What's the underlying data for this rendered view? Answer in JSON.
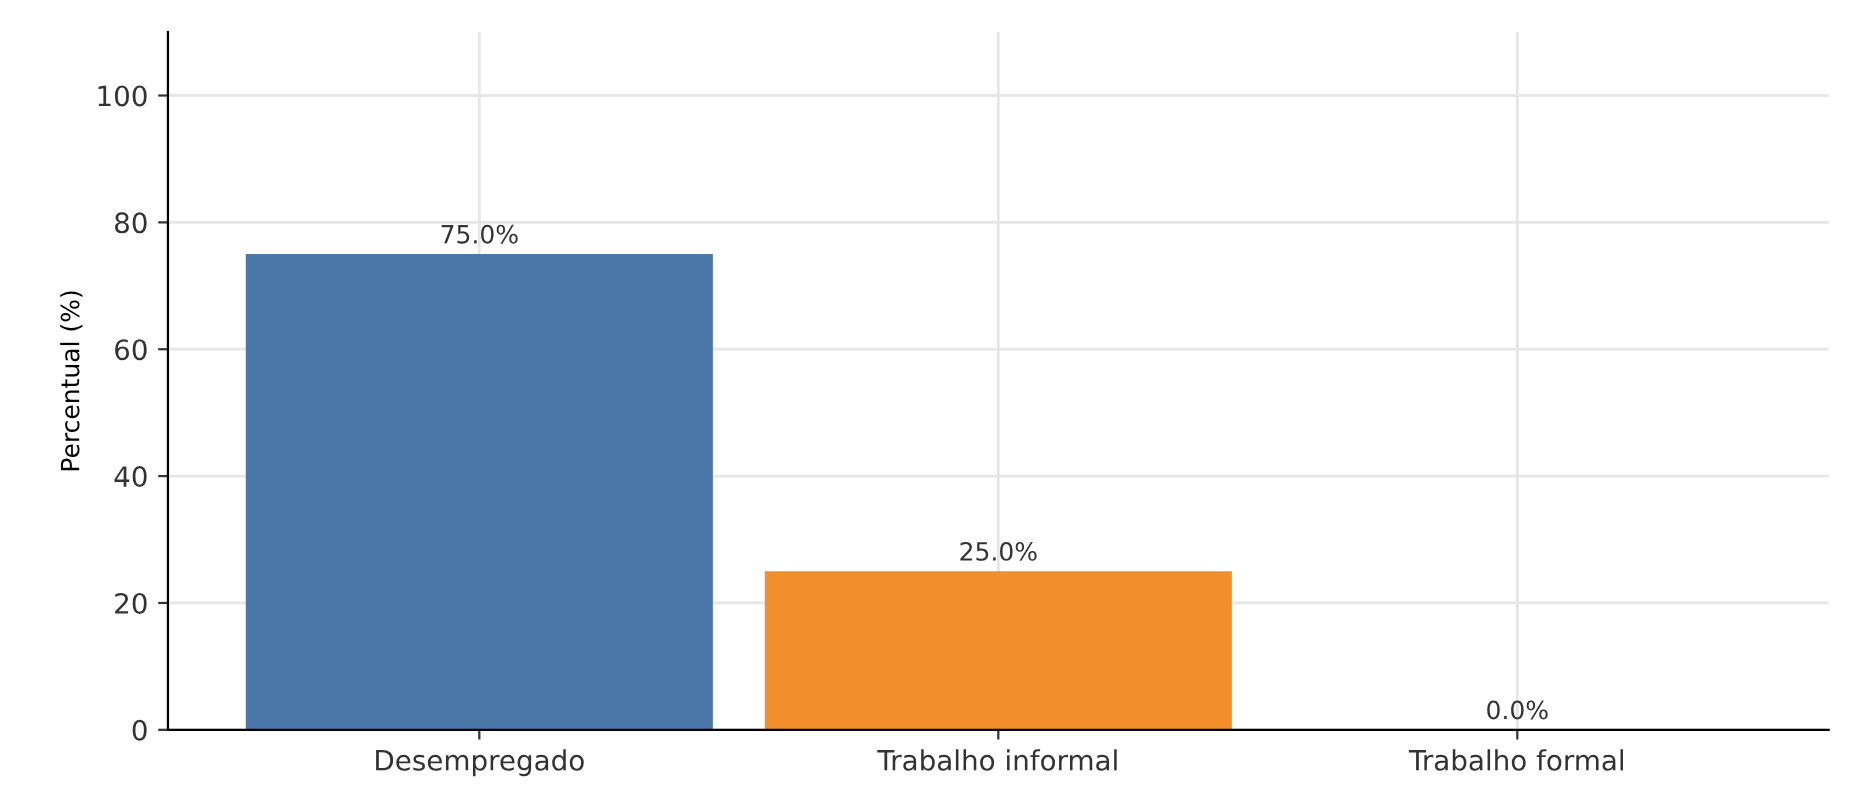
{
  "chart_data": {
    "type": "bar",
    "ylabel": "Percentual (%)",
    "categories": [
      "Desempregado",
      "Trabalho informal",
      "Trabalho formal"
    ],
    "values": [
      75.0,
      25.0,
      0.0
    ],
    "colors": [
      "#4a76a8",
      "#f28e2b",
      "#e15759"
    ],
    "value_labels": [
      "75.0%",
      "25.0%",
      "0.0%"
    ],
    "ylim": [
      0,
      110
    ],
    "yticks": [
      0,
      20,
      40,
      60,
      80,
      100
    ],
    "grid": true
  }
}
